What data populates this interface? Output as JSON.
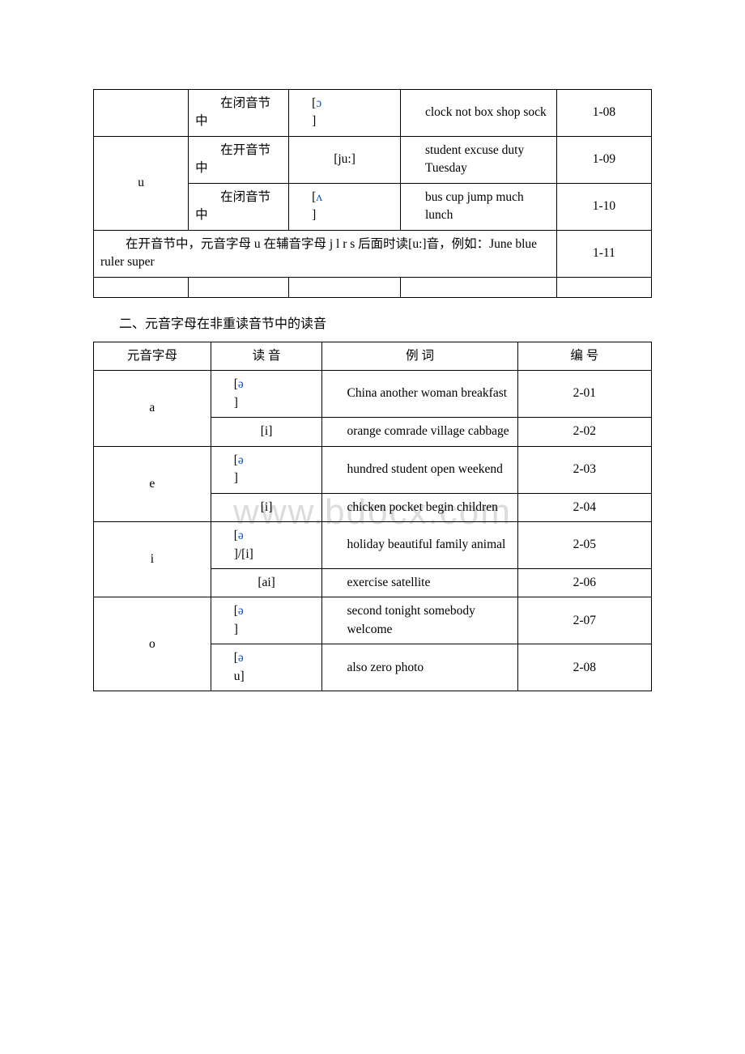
{
  "watermark": "www.bdocx.com",
  "colors": {
    "phonetic": "#1357c4",
    "text": "#000000",
    "border": "#000000",
    "watermark": "#dcdcdc"
  },
  "table1": {
    "rows": [
      {
        "letter": "",
        "cond": "在闭音节中",
        "sound_open": "[",
        "sound_sym": "ɔ",
        "sound_close": "]",
        "words": "clock not box shop sock",
        "num": "1-08"
      },
      {
        "letter": "u",
        "cond": "在开音节中",
        "sound_open": "",
        "sound_sym": "[ju:]",
        "sound_close": "",
        "words": "student excuse duty Tuesday",
        "num": "1-09"
      },
      {
        "letter": "",
        "cond": "在闭音节中",
        "sound_open": "[",
        "sound_sym": "ʌ",
        "sound_close": "]",
        "words": "bus cup jump much lunch",
        "num": "1-10"
      }
    ],
    "note": "在开音节中，元音字母 u 在辅音字母 j l r s 后面时读[u:]音，例如：June blue ruler super",
    "note_num": "1-11"
  },
  "section2_title": "二、元音字母在非重读音节中的读音",
  "table2": {
    "headers": {
      "letter": "元音字母",
      "sound": "读 音",
      "words": "例 词",
      "num": "编 号"
    },
    "rows": [
      {
        "letter": "a",
        "sound_open": "[",
        "sound_sym": "ə",
        "sound_close": "]",
        "words": "China another woman breakfast",
        "num": "2-01"
      },
      {
        "letter": "",
        "sound_open": "",
        "sound_sym": "[i]",
        "sound_close": "",
        "words": "orange comrade village cabbage",
        "num": "2-02"
      },
      {
        "letter": "e",
        "sound_open": "[",
        "sound_sym": "ə",
        "sound_close": "]",
        "words": "hundred student open weekend",
        "num": "2-03"
      },
      {
        "letter": "",
        "sound_open": "",
        "sound_sym": "[i]",
        "sound_close": "",
        "words": "chicken pocket begin children",
        "num": "2-04"
      },
      {
        "letter": "i",
        "sound_open": "[",
        "sound_sym": "ə",
        "sound_close": "]/[i]",
        "words": "holiday beautiful family animal",
        "num": "2-05"
      },
      {
        "letter": "",
        "sound_open": "",
        "sound_sym": "[ai]",
        "sound_close": "",
        "words": "exercise satellite",
        "num": "2-06"
      },
      {
        "letter": "o",
        "sound_open": "[",
        "sound_sym": "ə",
        "sound_close": "]",
        "words": "second tonight somebody welcome",
        "num": "2-07"
      },
      {
        "letter": "",
        "sound_open": "[",
        "sound_sym": "ə",
        "sound_close": "u]",
        "words": "also zero photo",
        "num": "2-08"
      }
    ]
  }
}
